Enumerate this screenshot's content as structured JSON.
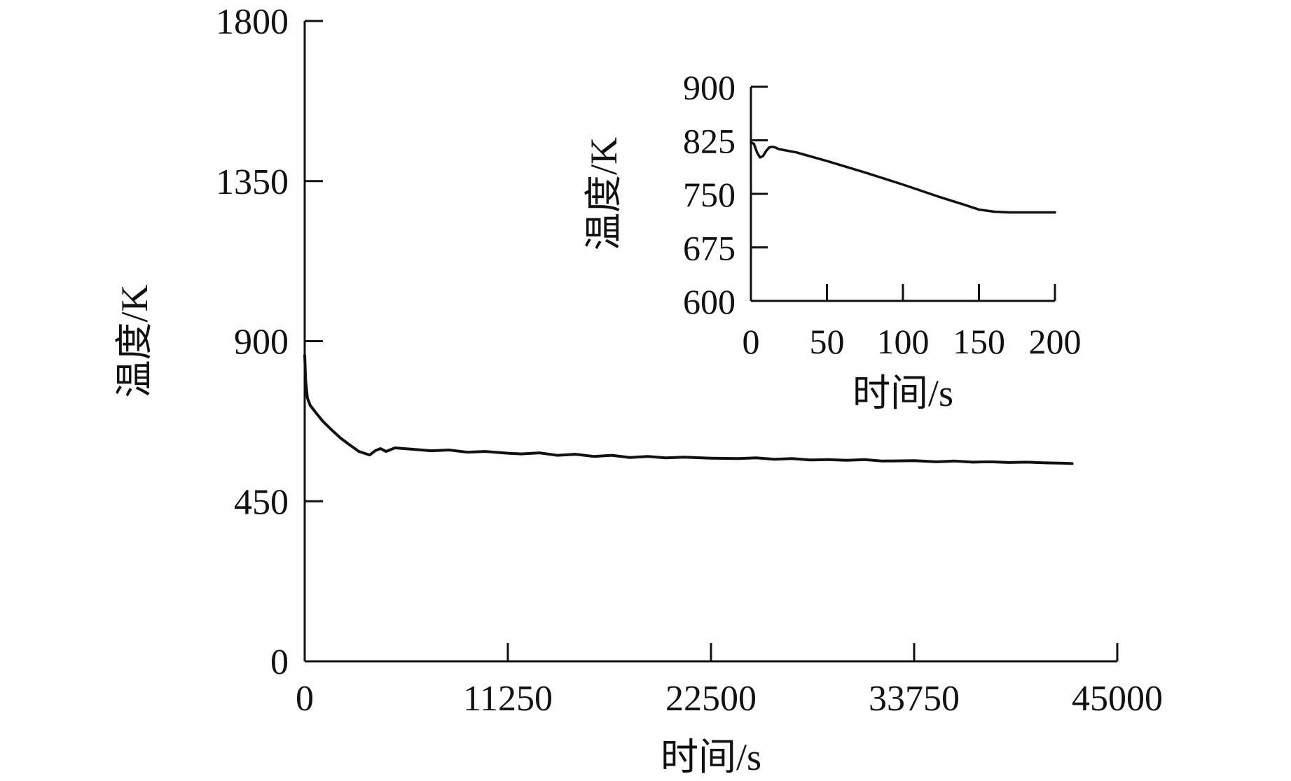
{
  "chart_data": [
    {
      "type": "line",
      "title": "",
      "xlabel": "时间/s",
      "ylabel": "温度/K",
      "xlim": [
        0,
        45000
      ],
      "ylim": [
        0,
        1800
      ],
      "xticks": [
        0,
        11250,
        22500,
        33750,
        45000
      ],
      "yticks": [
        0,
        450,
        900,
        1350,
        1800
      ],
      "grid": false,
      "legend": "none",
      "series": [
        {
          "x": [
            0,
            50,
            150,
            300,
            600,
            1000,
            1500,
            2000,
            2500,
            3000,
            3300,
            3600,
            3900,
            4200,
            4500,
            5000,
            6000,
            7000,
            8000,
            9000,
            10000,
            11250,
            12000,
            13000,
            14000,
            15000,
            16000,
            17000,
            18000,
            19000,
            20000,
            21000,
            22500,
            24000,
            25000,
            26000,
            27000,
            28000,
            29000,
            30000,
            31000,
            32000,
            33750,
            35000,
            36000,
            37000,
            38000,
            39000,
            40000,
            41000,
            42000,
            42500
          ],
          "y": [
            860,
            790,
            740,
            720,
            700,
            675,
            650,
            627,
            608,
            590,
            585,
            580,
            592,
            598,
            590,
            600,
            596,
            592,
            594,
            588,
            590,
            585,
            583,
            586,
            579,
            582,
            576,
            579,
            573,
            576,
            572,
            574,
            571,
            570,
            572,
            568,
            570,
            566,
            567,
            565,
            567,
            563,
            564,
            561,
            563,
            560,
            561,
            559,
            560,
            558,
            557,
            556
          ]
        }
      ]
    },
    {
      "type": "line",
      "title": "",
      "xlabel": "时间/s",
      "ylabel": "温度/K",
      "xlim": [
        0,
        200
      ],
      "ylim": [
        600,
        900
      ],
      "xticks": [
        0,
        50,
        100,
        150,
        200
      ],
      "yticks": [
        600,
        675,
        750,
        825,
        900
      ],
      "grid": false,
      "legend": "none",
      "series": [
        {
          "x": [
            0,
            2,
            4,
            6,
            8,
            10,
            12,
            14,
            16,
            18,
            20,
            30,
            50,
            75,
            100,
            125,
            140,
            150,
            160,
            170,
            180,
            200
          ],
          "y": [
            822,
            820,
            808,
            801,
            803,
            810,
            815,
            816,
            815,
            813,
            812,
            808,
            796,
            780,
            763,
            745,
            735,
            728,
            725,
            724,
            724,
            724
          ]
        }
      ]
    }
  ]
}
